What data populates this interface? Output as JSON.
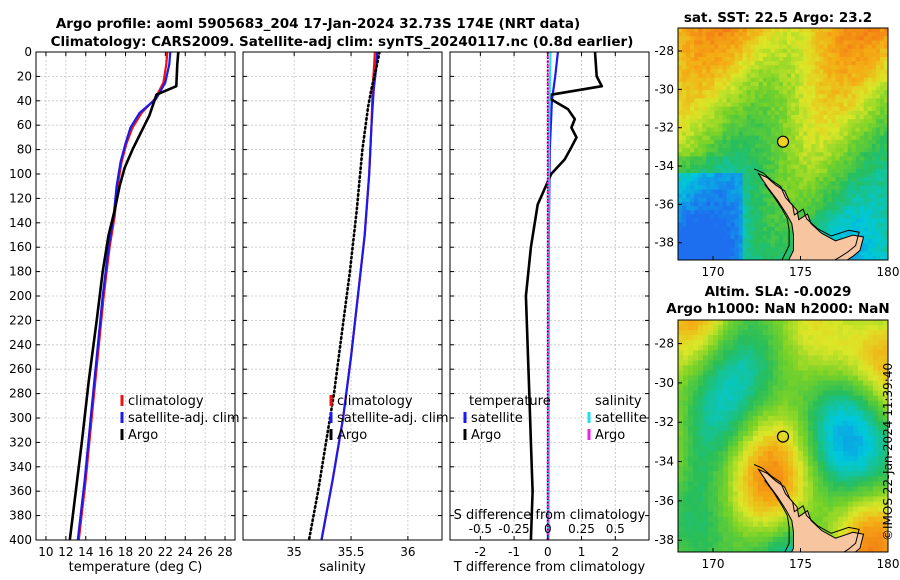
{
  "main_title": {
    "line1": "Argo profile: aoml 5905683_204 17-Jan-2024 32.73S 174E (NRT data)",
    "line2": "Climatology: CARS2009. Satellite-adj clim: synTS_20240117.nc (0.8d earlier)"
  },
  "timestamp": "©IMOS 22-Jan-2024 11:39:40",
  "colors": {
    "climatology": "#ee1111",
    "satellite_adj": "#1a1aee",
    "argo": "#000000",
    "sal_satellite": "#22ddee",
    "sal_argo": "#ee22dd",
    "land": "#f7c59f"
  },
  "chart_data": [
    {
      "type": "line",
      "id": "temperature-profile",
      "xlabel": "temperature (deg C)",
      "ylabel": "",
      "xlim": [
        9,
        29
      ],
      "ylim": [
        400,
        0
      ],
      "grid": true,
      "xticks": [
        10,
        12,
        14,
        16,
        18,
        20,
        22,
        24,
        26,
        28
      ],
      "xtick_labels": [
        "10",
        "12",
        "14",
        "16",
        "18",
        "20",
        "22",
        "24",
        "26",
        "28"
      ],
      "yticks": [
        0,
        20,
        40,
        60,
        80,
        100,
        120,
        140,
        160,
        180,
        200,
        220,
        240,
        260,
        280,
        300,
        320,
        340,
        360,
        380,
        400
      ],
      "ytick_labels": [
        "0",
        "20",
        "40",
        "60",
        "80",
        "100",
        "120",
        "140",
        "160",
        "180",
        "200",
        "220",
        "240",
        "260",
        "280",
        "300",
        "320",
        "340",
        "360",
        "380",
        "400"
      ],
      "legend_position": "right",
      "series": [
        {
          "name": "climatology",
          "color": "#ee1111",
          "width": 2.2,
          "points": [
            [
              22.2,
              0
            ],
            [
              22.1,
              10
            ],
            [
              21.8,
              25
            ],
            [
              21.0,
              38
            ],
            [
              19.6,
              50
            ],
            [
              18.7,
              62
            ],
            [
              18.1,
              75
            ],
            [
              17.6,
              90
            ],
            [
              17.2,
              110
            ],
            [
              16.9,
              135
            ],
            [
              16.4,
              160
            ],
            [
              15.8,
              200
            ],
            [
              15.2,
              250
            ],
            [
              14.6,
              300
            ],
            [
              14.0,
              350
            ],
            [
              13.3,
              400
            ]
          ]
        },
        {
          "name": "satellite-adj. clim",
          "color": "#1a1aee",
          "width": 2.2,
          "points": [
            [
              22.5,
              0
            ],
            [
              22.4,
              10
            ],
            [
              22.0,
              25
            ],
            [
              21.1,
              38
            ],
            [
              19.4,
              50
            ],
            [
              18.5,
              62
            ],
            [
              18.0,
              75
            ],
            [
              17.5,
              90
            ],
            [
              17.1,
              110
            ],
            [
              16.8,
              135
            ],
            [
              16.3,
              160
            ],
            [
              15.7,
              200
            ],
            [
              15.1,
              250
            ],
            [
              14.5,
              300
            ],
            [
              13.9,
              350
            ],
            [
              13.2,
              400
            ]
          ]
        },
        {
          "name": "Argo",
          "color": "#000000",
          "width": 2.6,
          "points": [
            [
              23.3,
              0
            ],
            [
              23.2,
              10
            ],
            [
              23.1,
              28
            ],
            [
              21.1,
              35
            ],
            [
              20.9,
              40
            ],
            [
              20.4,
              52
            ],
            [
              19.6,
              65
            ],
            [
              18.7,
              80
            ],
            [
              17.9,
              95
            ],
            [
              17.4,
              110
            ],
            [
              16.9,
              130
            ],
            [
              16.3,
              150
            ],
            [
              15.7,
              180
            ],
            [
              15.1,
              220
            ],
            [
              14.3,
              270
            ],
            [
              13.6,
              320
            ],
            [
              13.0,
              360
            ],
            [
              12.4,
              400
            ]
          ]
        }
      ]
    },
    {
      "type": "line",
      "id": "salinity-profile",
      "xlabel": "salinity",
      "ylabel": "",
      "xlim": [
        34.55,
        36.3
      ],
      "ylim": [
        400,
        0
      ],
      "grid": true,
      "xticks": [
        35,
        35.5,
        36
      ],
      "xtick_labels": [
        "35",
        "35.5",
        "36"
      ],
      "legend_position": "right",
      "series": [
        {
          "name": "climatology",
          "color": "#ee1111",
          "width": 2.2,
          "points": [
            [
              35.71,
              0
            ],
            [
              35.7,
              15
            ],
            [
              35.69,
              30
            ],
            [
              35.68,
              60
            ],
            [
              35.66,
              100
            ],
            [
              35.62,
              150
            ],
            [
              35.56,
              200
            ],
            [
              35.5,
              250
            ],
            [
              35.43,
              300
            ],
            [
              35.34,
              350
            ],
            [
              35.24,
              400
            ]
          ]
        },
        {
          "name": "satellite-adj. clim",
          "color": "#1a1aee",
          "width": 2.2,
          "points": [
            [
              35.73,
              0
            ],
            [
              35.72,
              15
            ],
            [
              35.7,
              30
            ],
            [
              35.68,
              60
            ],
            [
              35.66,
              100
            ],
            [
              35.62,
              150
            ],
            [
              35.56,
              200
            ],
            [
              35.5,
              250
            ],
            [
              35.43,
              300
            ],
            [
              35.34,
              350
            ],
            [
              35.24,
              400
            ]
          ]
        },
        {
          "name": "Argo",
          "color": "#000000",
          "width": 2.2,
          "dotted": true,
          "points": [
            [
              35.75,
              0
            ],
            [
              35.73,
              10
            ],
            [
              35.68,
              30
            ],
            [
              35.65,
              45
            ],
            [
              35.6,
              80
            ],
            [
              35.55,
              130
            ],
            [
              35.49,
              180
            ],
            [
              35.42,
              230
            ],
            [
              35.35,
              280
            ],
            [
              35.28,
              320
            ],
            [
              35.21,
              360
            ],
            [
              35.13,
              400
            ]
          ]
        }
      ]
    },
    {
      "type": "line",
      "id": "difference-profile",
      "xlabel": "T difference from climatology",
      "xlabel_top": "S difference from climatology",
      "ylabel": "",
      "xlim": [
        -2.9,
        3.0
      ],
      "ylim": [
        400,
        0
      ],
      "grid": true,
      "xticks": [
        -2,
        -1,
        0,
        1,
        2
      ],
      "xtick_labels": [
        "-2",
        "-1",
        "0",
        "1",
        "2"
      ],
      "s_xticks": [
        -0.5,
        -0.25,
        0,
        0.25,
        0.5
      ],
      "s_xtick_labels": [
        "-0.5",
        "-0.25",
        "0",
        "0.25",
        "0.5"
      ],
      "s_scale_t_per_s": 4,
      "legend_position": "right",
      "legend_headers": [
        "temperature",
        "salinity"
      ],
      "series": [
        {
          "name": "T satellite",
          "color": "#1a1aee",
          "width": 2.2,
          "points": [
            [
              0.3,
              0
            ],
            [
              0.22,
              20
            ],
            [
              0.12,
              40
            ],
            [
              0.06,
              80
            ],
            [
              0.03,
              150
            ],
            [
              0.02,
              250
            ],
            [
              0.01,
              400
            ]
          ]
        },
        {
          "name": "T Argo",
          "color": "#000000",
          "width": 2.6,
          "points": [
            [
              1.4,
              0
            ],
            [
              1.45,
              20
            ],
            [
              1.6,
              28
            ],
            [
              0.1,
              35
            ],
            [
              0.05,
              38
            ],
            [
              0.6,
              47
            ],
            [
              0.8,
              55
            ],
            [
              0.7,
              62
            ],
            [
              0.85,
              70
            ],
            [
              0.7,
              78
            ],
            [
              0.5,
              88
            ],
            [
              0.1,
              100
            ],
            [
              -0.3,
              125
            ],
            [
              -0.5,
              160
            ],
            [
              -0.65,
              200
            ],
            [
              -0.6,
              240
            ],
            [
              -0.55,
              280
            ],
            [
              -0.5,
              320
            ],
            [
              -0.45,
              360
            ],
            [
              -0.5,
              400
            ]
          ]
        },
        {
          "name": "S satellite",
          "color": "#22ddee",
          "width": 2.2,
          "points": [
            [
              0.02,
              0
            ],
            [
              0.01,
              50
            ],
            [
              0.005,
              150
            ],
            [
              0.0,
              400
            ]
          ]
        },
        {
          "name": "S Argo",
          "color": "#ee22dd",
          "width": 1.8,
          "dotted": true,
          "points": [
            [
              0.0,
              0
            ],
            [
              0.0,
              400
            ]
          ]
        }
      ]
    },
    {
      "type": "heatmap",
      "id": "sst-map",
      "title": "sat. SST: 22.5 Argo: 23.2",
      "xlim": [
        168,
        180
      ],
      "ylim": [
        -38.9,
        -26.8
      ],
      "xticks": [
        170,
        175,
        180
      ],
      "xtick_labels": [
        "170",
        "175",
        "180"
      ],
      "yticks": [
        -28,
        -30,
        -32,
        -34,
        -36,
        -38
      ],
      "ytick_labels": [
        "-28",
        "-30",
        "-32",
        "-34",
        "-36",
        "-38"
      ],
      "marker": {
        "lon": 174,
        "lat": -32.73
      }
    },
    {
      "type": "heatmap",
      "id": "sla-map",
      "title_line1": "Altim. SLA: -0.0029",
      "title_line2": "Argo h1000: NaN h2000: NaN",
      "xlim": [
        168,
        180
      ],
      "ylim": [
        -38.6,
        -26.8
      ],
      "xticks": [
        170,
        175,
        180
      ],
      "xtick_labels": [
        "170",
        "175",
        "180"
      ],
      "yticks": [
        -28,
        -30,
        -32,
        -34,
        -36,
        -38
      ],
      "ytick_labels": [
        "-28",
        "-30",
        "-32",
        "-34",
        "-36",
        "-38"
      ],
      "marker": {
        "lon": 174,
        "lat": -32.73
      }
    }
  ],
  "legends": {
    "profile": [
      "climatology",
      "satellite-adj. clim",
      "Argo"
    ],
    "diff_temperature": [
      "satellite",
      "Argo"
    ],
    "diff_salinity": [
      "satellite",
      "Argo"
    ]
  }
}
